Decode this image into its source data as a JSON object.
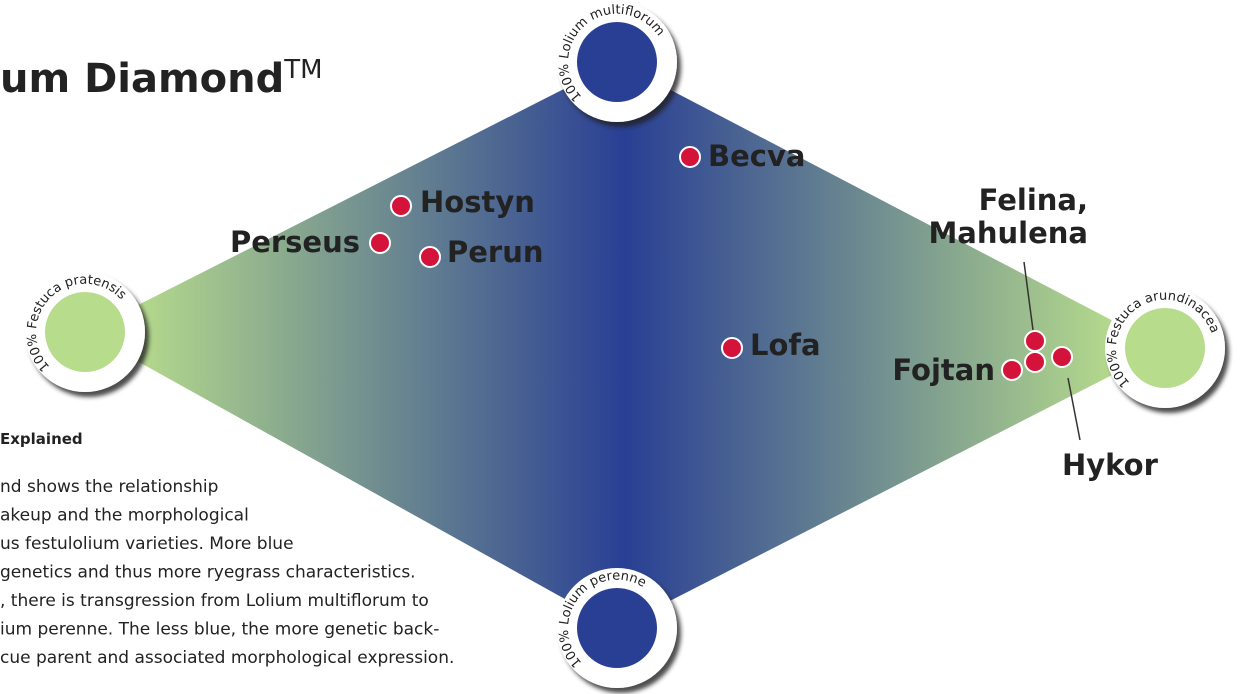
{
  "title": "um Diamond",
  "trademark": "TM",
  "explanation": {
    "heading": "Explained",
    "lines": [
      "nd shows the relationship",
      "akeup and the morphological",
      "us festulolium varieties. More blue",
      "genetics and thus more ryegrass characteristics.",
      ", there is transgression from Lolium multiflorum to",
      "ium perenne. The less blue, the more genetic back-",
      "cue parent and associated morphological expression."
    ]
  },
  "poles": [
    "100% Lolium multiflorum",
    "100% Festuca pratensis",
    "100% Festuca arundinacea",
    "100% Lolium perenne"
  ],
  "varieties": [
    "Becva",
    "Hostyn",
    "Perseus",
    "Perun",
    "Lofa",
    "Felina,",
    "Mahulena",
    "Fojtan",
    "Hykor"
  ]
}
